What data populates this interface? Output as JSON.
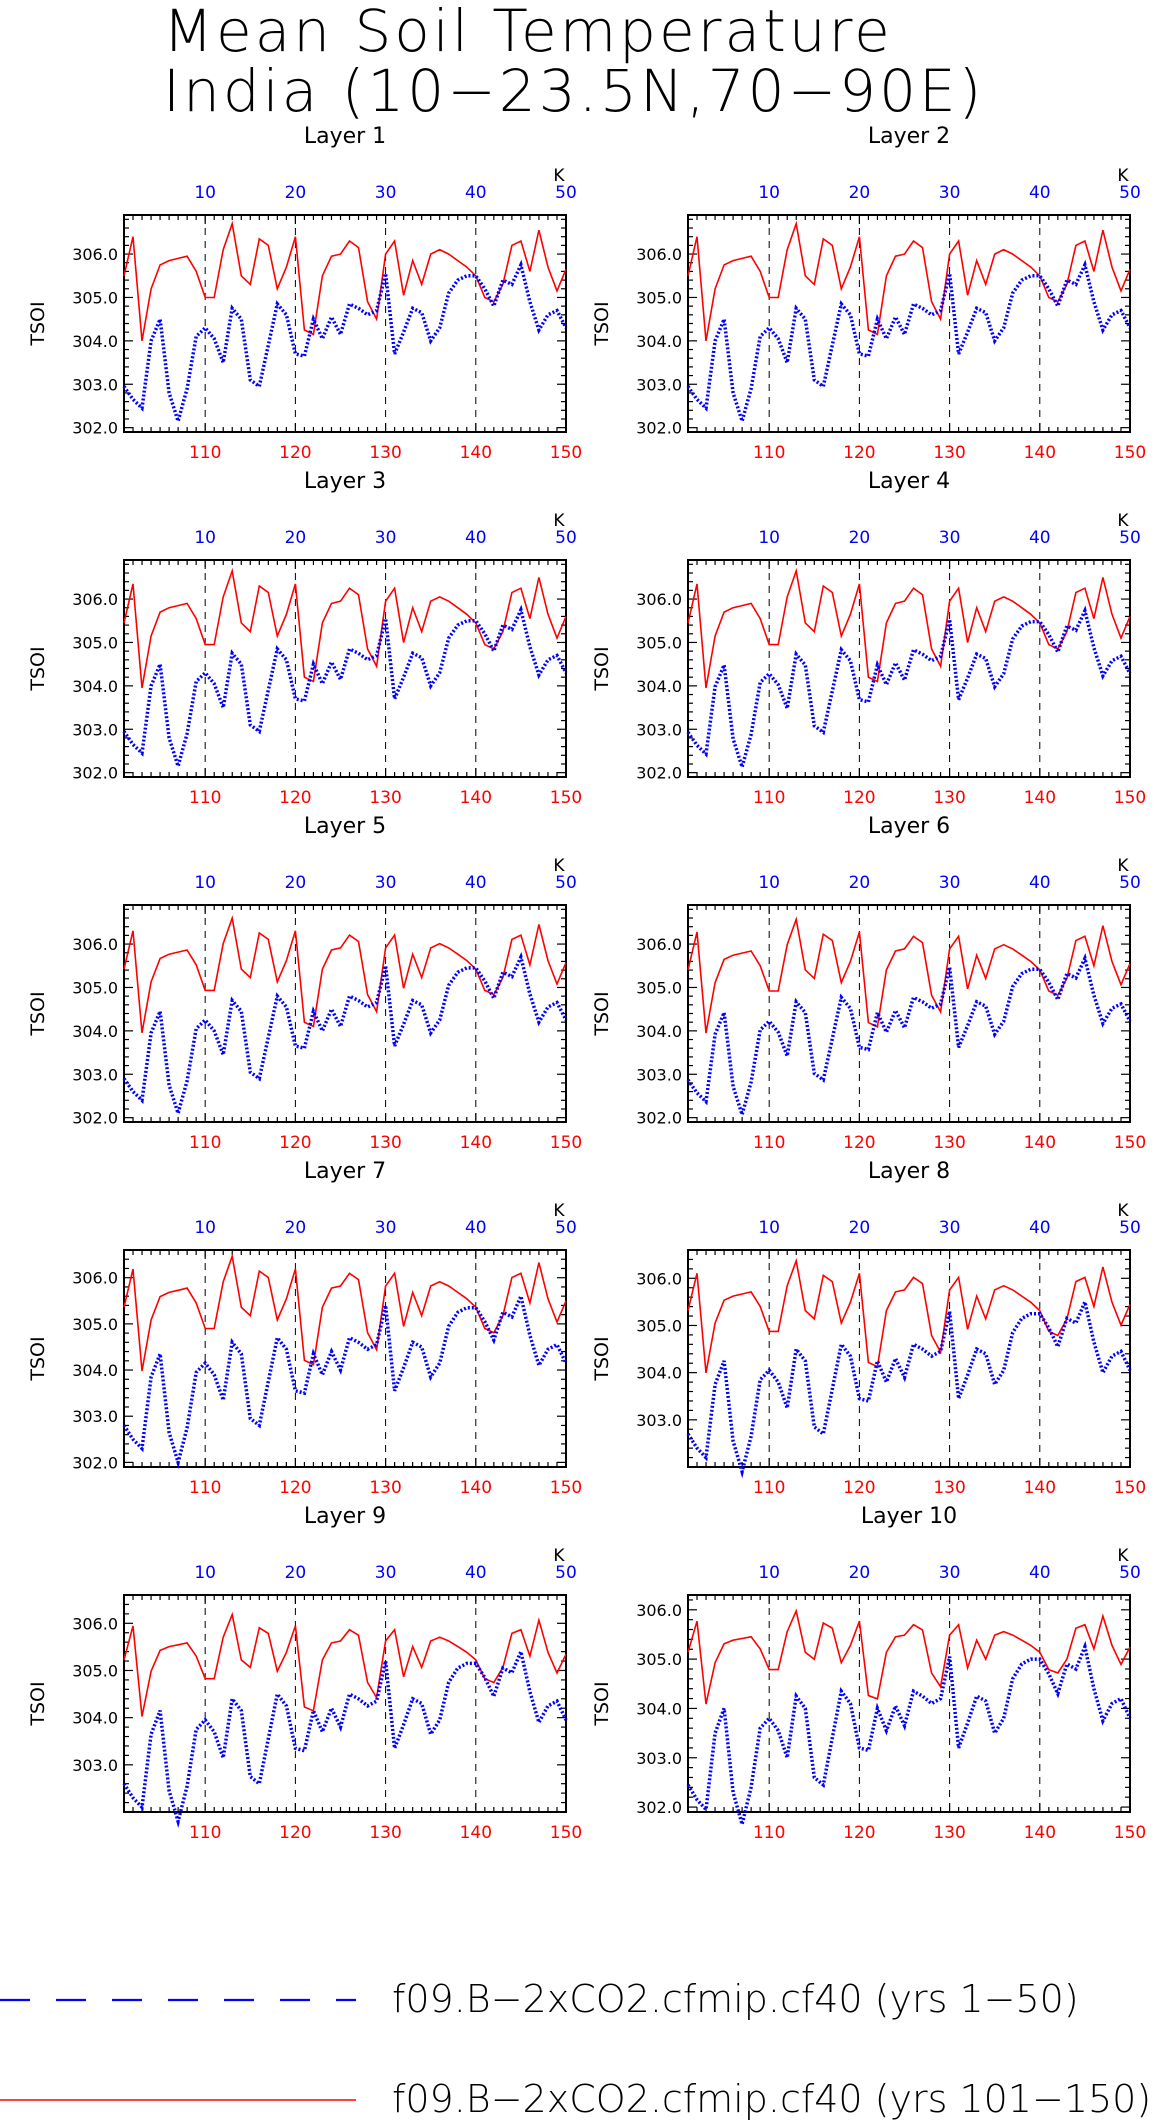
{
  "page": {
    "title_line1": "Mean Soil Temperature",
    "title_line2": "India (10−23.5N,70−90E)"
  },
  "colors": {
    "series_a": "#0000ff",
    "series_b": "#ff0000",
    "grid": "#000000"
  },
  "legend": {
    "placement": "bottom",
    "items": [
      {
        "label": "f09.B−2xCO2.cfmip.cf40 (yrs 1−50)",
        "color": "#0000ff",
        "style": "dashed"
      },
      {
        "label": "f09.B−2xCO2.cfmip.cf40 (yrs 101−150)",
        "color": "#ff0000",
        "style": "solid"
      }
    ]
  },
  "chart_data": {
    "type": "line",
    "ylabel": "TSOI",
    "top_axis_unit": "K",
    "x_bottom": [
      101,
      102,
      103,
      104,
      105,
      106,
      107,
      108,
      109,
      110,
      111,
      112,
      113,
      114,
      115,
      116,
      117,
      118,
      119,
      120,
      121,
      122,
      123,
      124,
      125,
      126,
      127,
      128,
      129,
      130,
      131,
      132,
      133,
      134,
      135,
      136,
      137,
      138,
      139,
      140,
      141,
      142,
      143,
      144,
      145,
      146,
      147,
      148,
      149,
      150
    ],
    "x_top": [
      1,
      2,
      3,
      4,
      5,
      6,
      7,
      8,
      9,
      10,
      11,
      12,
      13,
      14,
      15,
      16,
      17,
      18,
      19,
      20,
      21,
      22,
      23,
      24,
      25,
      26,
      27,
      28,
      29,
      30,
      31,
      32,
      33,
      34,
      35,
      36,
      37,
      38,
      39,
      40,
      41,
      42,
      43,
      44,
      45,
      46,
      47,
      48,
      49,
      50
    ],
    "xlim": [
      101,
      150
    ],
    "bottom_ticks": [
      110,
      120,
      130,
      140,
      150
    ],
    "top_ticks": [
      10,
      20,
      30,
      40,
      50
    ],
    "grid": "vertical dashed at 110, 120, 130, 140",
    "base_series": {
      "blue": [
        302.95,
        302.65,
        302.45,
        304.0,
        304.5,
        302.8,
        302.15,
        302.9,
        304.1,
        304.3,
        304.05,
        303.5,
        304.75,
        304.5,
        303.1,
        302.95,
        303.9,
        304.85,
        304.6,
        303.7,
        303.65,
        304.5,
        304.05,
        304.55,
        304.15,
        304.85,
        304.75,
        304.6,
        304.7,
        305.55,
        303.7,
        304.2,
        304.75,
        304.65,
        304.0,
        304.3,
        305.1,
        305.4,
        305.5,
        305.5,
        305.2,
        304.8,
        305.4,
        305.3,
        305.75,
        304.9,
        304.25,
        304.6,
        304.7,
        304.3
      ],
      "red": [
        305.5,
        306.4,
        304.0,
        305.2,
        305.75,
        305.85,
        305.9,
        305.95,
        305.6,
        305.0,
        305.0,
        306.1,
        306.7,
        305.5,
        305.3,
        306.35,
        306.2,
        305.2,
        305.7,
        306.4,
        304.25,
        304.15,
        305.5,
        305.95,
        306.0,
        306.3,
        306.15,
        304.9,
        304.5,
        306.0,
        306.3,
        305.05,
        305.85,
        305.3,
        306.0,
        306.1,
        306.0,
        305.85,
        305.7,
        305.5,
        305.0,
        304.9,
        305.3,
        306.2,
        306.3,
        305.6,
        306.55,
        305.7,
        305.15,
        305.65
      ]
    },
    "panels": [
      {
        "subtitle": "Layer 1",
        "ylim": [
          301.9,
          306.9
        ],
        "yticks": [
          302.0,
          303.0,
          304.0,
          305.0,
          306.0
        ],
        "blue_shift": 0.0,
        "red_shift": 0.0,
        "red_scale": 1.0
      },
      {
        "subtitle": "Layer 2",
        "ylim": [
          301.9,
          306.9
        ],
        "yticks": [
          302.0,
          303.0,
          304.0,
          305.0,
          306.0
        ],
        "blue_shift": 0.0,
        "red_shift": 0.0,
        "red_scale": 1.0
      },
      {
        "subtitle": "Layer 3",
        "ylim": [
          301.9,
          306.9
        ],
        "yticks": [
          302.0,
          303.0,
          304.0,
          305.0,
          306.0
        ],
        "blue_shift": 0.0,
        "red_shift": -0.05,
        "red_scale": 1.0
      },
      {
        "subtitle": "Layer 4",
        "ylim": [
          301.9,
          306.9
        ],
        "yticks": [
          302.0,
          303.0,
          304.0,
          305.0,
          306.0
        ],
        "blue_shift": -0.02,
        "red_shift": -0.05,
        "red_scale": 1.0
      },
      {
        "subtitle": "Layer 5",
        "ylim": [
          301.9,
          306.9
        ],
        "yticks": [
          302.0,
          303.0,
          304.0,
          305.0,
          306.0
        ],
        "blue_shift": -0.05,
        "red_shift": -0.08,
        "red_scale": 0.98
      },
      {
        "subtitle": "Layer 6",
        "ylim": [
          301.9,
          306.9
        ],
        "yticks": [
          302.0,
          303.0,
          304.0,
          305.0,
          306.0
        ],
        "blue_shift": -0.08,
        "red_shift": -0.1,
        "red_scale": 0.97
      },
      {
        "subtitle": "Layer 7",
        "ylim": [
          301.9,
          306.6
        ],
        "yticks": [
          302.0,
          303.0,
          304.0,
          305.0,
          306.0
        ],
        "blue_shift": -0.15,
        "red_shift": -0.15,
        "red_scale": 0.92
      },
      {
        "subtitle": "Layer 8",
        "ylim": [
          302.0,
          306.6
        ],
        "yticks": [
          303.0,
          304.0,
          305.0,
          306.0
        ],
        "blue_shift": -0.25,
        "red_shift": -0.2,
        "red_scale": 0.88
      },
      {
        "subtitle": "Layer 9",
        "ylim": [
          302.0,
          306.6
        ],
        "yticks": [
          303.0,
          304.0,
          305.0,
          306.0
        ],
        "blue_shift": -0.35,
        "red_shift": -0.3,
        "red_scale": 0.8
      },
      {
        "subtitle": "Layer 10",
        "ylim": [
          301.9,
          306.3
        ],
        "yticks": [
          302.0,
          303.0,
          304.0,
          305.0,
          306.0
        ],
        "blue_shift": -0.5,
        "red_shift": -0.4,
        "red_scale": 0.7
      }
    ]
  }
}
